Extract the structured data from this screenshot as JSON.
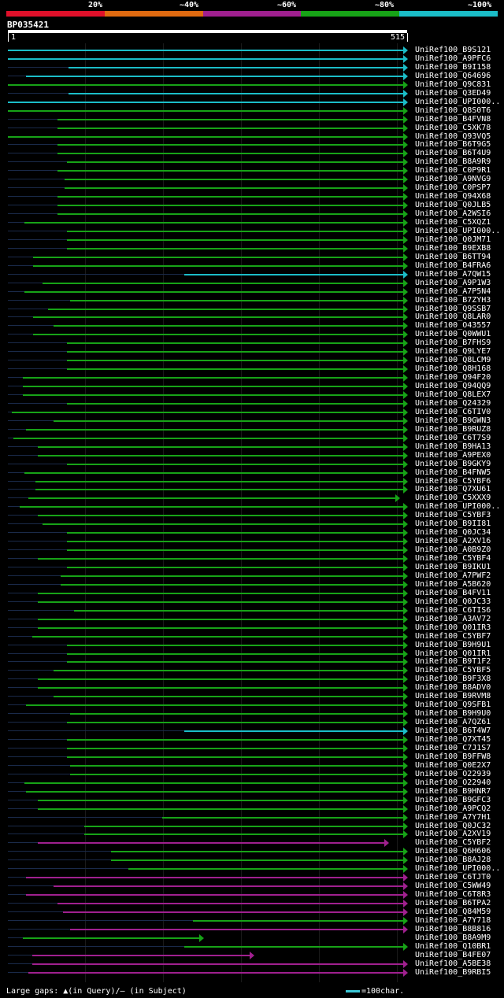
{
  "legend": {
    "labels": [
      "20%",
      "~40%",
      "~60%",
      "~80%",
      "~100%"
    ],
    "colors": [
      "#e0102a",
      "#e06a10",
      "#a0208f",
      "#17a317",
      "#1bbdc8"
    ]
  },
  "query_id": "BP035421",
  "ruler": {
    "start_label": "1",
    "end_label": "515"
  },
  "footer": {
    "text": "Large gaps: ▲(in Query)/— (in Subject)",
    "scale_label": "=100char."
  },
  "query_length": 515,
  "hits": [
    {
      "id": "UniRef100_B9S121",
      "color": "#1bbdc8",
      "s": 1,
      "e": 515
    },
    {
      "id": "UniRef100_A9PFC6",
      "color": "#1bbdc8",
      "s": 1,
      "e": 515
    },
    {
      "id": "UniRef100_B9I158",
      "color": "#1bbdc8",
      "s": 80,
      "e": 515
    },
    {
      "id": "UniRef100_Q64696",
      "color": "#1bbdc8",
      "s": 25,
      "e": 515
    },
    {
      "id": "UniRef100_Q9C831",
      "color": "#17a317",
      "s": 1,
      "e": 515
    },
    {
      "id": "UniRef100_Q3ED49",
      "color": "#1bbdc8",
      "s": 80,
      "e": 515
    },
    {
      "id": "UniRef100_UPI000..",
      "color": "#1bbdc8",
      "s": 1,
      "e": 515
    },
    {
      "id": "UniRef100_Q8S0T6",
      "color": "#17a317",
      "s": 1,
      "e": 515
    },
    {
      "id": "UniRef100_B4FVN8",
      "color": "#17a317",
      "s": 65,
      "e": 515
    },
    {
      "id": "UniRef100_C5XK78",
      "color": "#17a317",
      "s": 65,
      "e": 515
    },
    {
      "id": "UniRef100_Q93VQ5",
      "color": "#17a317",
      "s": 1,
      "e": 515
    },
    {
      "id": "UniRef100_B6T9G5",
      "color": "#17a317",
      "s": 65,
      "e": 515
    },
    {
      "id": "UniRef100_B6T4U9",
      "color": "#17a317",
      "s": 65,
      "e": 515
    },
    {
      "id": "UniRef100_B8A9R9",
      "color": "#17a317",
      "s": 78,
      "e": 515
    },
    {
      "id": "UniRef100_C0P9R1",
      "color": "#17a317",
      "s": 65,
      "e": 515
    },
    {
      "id": "UniRef100_A9NVG9",
      "color": "#17a317",
      "s": 75,
      "e": 515
    },
    {
      "id": "UniRef100_C0PSP7",
      "color": "#17a317",
      "s": 75,
      "e": 515
    },
    {
      "id": "UniRef100_Q94X68",
      "color": "#17a317",
      "s": 65,
      "e": 515
    },
    {
      "id": "UniRef100_Q0JLB5",
      "color": "#17a317",
      "s": 65,
      "e": 515
    },
    {
      "id": "UniRef100_A2WSI6",
      "color": "#17a317",
      "s": 65,
      "e": 515
    },
    {
      "id": "UniRef100_C5XQZ1",
      "color": "#17a317",
      "s": 22,
      "e": 515
    },
    {
      "id": "UniRef100_UPI000..",
      "color": "#17a317",
      "s": 78,
      "e": 515
    },
    {
      "id": "UniRef100_Q0JM71",
      "color": "#17a317",
      "s": 78,
      "e": 515
    },
    {
      "id": "UniRef100_B9EXB8",
      "color": "#17a317",
      "s": 78,
      "e": 515
    },
    {
      "id": "UniRef100_B6TT94",
      "color": "#17a317",
      "s": 34,
      "e": 515
    },
    {
      "id": "UniRef100_B4FRA6",
      "color": "#17a317",
      "s": 34,
      "e": 515
    },
    {
      "id": "UniRef100_A7QW15",
      "color": "#1bbdc8",
      "s": 230,
      "e": 515
    },
    {
      "id": "UniRef100_A9P1W3",
      "color": "#17a317",
      "s": 46,
      "e": 515
    },
    {
      "id": "UniRef100_A7P5N4",
      "color": "#17a317",
      "s": 22,
      "e": 515
    },
    {
      "id": "UniRef100_B7ZYH3",
      "color": "#17a317",
      "s": 82,
      "e": 515
    },
    {
      "id": "UniRef100_Q9SSB7",
      "color": "#17a317",
      "s": 53,
      "e": 515
    },
    {
      "id": "UniRef100_Q8LAR0",
      "color": "#17a317",
      "s": 34,
      "e": 515
    },
    {
      "id": "UniRef100_O43557",
      "color": "#17a317",
      "s": 60,
      "e": 515
    },
    {
      "id": "UniRef100_Q0WWU1",
      "color": "#17a317",
      "s": 34,
      "e": 515
    },
    {
      "id": "UniRef100_B7FHS9",
      "color": "#17a317",
      "s": 78,
      "e": 515
    },
    {
      "id": "UniRef100_Q9LYE7",
      "color": "#17a317",
      "s": 78,
      "e": 515
    },
    {
      "id": "UniRef100_Q8LCM9",
      "color": "#17a317",
      "s": 78,
      "e": 515
    },
    {
      "id": "UniRef100_Q8H168",
      "color": "#17a317",
      "s": 78,
      "e": 515
    },
    {
      "id": "UniRef100_Q94F20",
      "color": "#17a317",
      "s": 20,
      "e": 515
    },
    {
      "id": "UniRef100_Q94QQ9",
      "color": "#17a317",
      "s": 20,
      "e": 515
    },
    {
      "id": "UniRef100_Q8LEX7",
      "color": "#17a317",
      "s": 20,
      "e": 515
    },
    {
      "id": "UniRef100_Q24329",
      "color": "#17a317",
      "s": 78,
      "e": 515
    },
    {
      "id": "UniRef100_C6TIV0",
      "color": "#17a317",
      "s": 6,
      "e": 515
    },
    {
      "id": "UniRef100_B9GWN3",
      "color": "#17a317",
      "s": 60,
      "e": 515
    },
    {
      "id": "UniRef100_B9RUZ8",
      "color": "#17a317",
      "s": 25,
      "e": 515
    },
    {
      "id": "UniRef100_C6T7S9",
      "color": "#17a317",
      "s": 8,
      "e": 515
    },
    {
      "id": "UniRef100_B9HA13",
      "color": "#17a317",
      "s": 40,
      "e": 515
    },
    {
      "id": "UniRef100_A9PEX0",
      "color": "#17a317",
      "s": 40,
      "e": 515
    },
    {
      "id": "UniRef100_B9GKY9",
      "color": "#17a317",
      "s": 78,
      "e": 515
    },
    {
      "id": "UniRef100_B4FNW5",
      "color": "#17a317",
      "s": 22,
      "e": 515
    },
    {
      "id": "UniRef100_C5YBF6",
      "color": "#17a317",
      "s": 37,
      "e": 515
    },
    {
      "id": "UniRef100_Q7XU61",
      "color": "#17a317",
      "s": 37,
      "e": 515
    },
    {
      "id": "UniRef100_C5XXX9",
      "color": "#17a317",
      "s": 28,
      "e": 505
    },
    {
      "id": "UniRef100_UPI000..",
      "color": "#17a317",
      "s": 16,
      "e": 515
    },
    {
      "id": "UniRef100_C5YBF3",
      "color": "#17a317",
      "s": 40,
      "e": 515
    },
    {
      "id": "UniRef100_B9II81",
      "color": "#17a317",
      "s": 46,
      "e": 515
    },
    {
      "id": "UniRef100_Q0JC34",
      "color": "#17a317",
      "s": 78,
      "e": 515
    },
    {
      "id": "UniRef100_A2XV16",
      "color": "#17a317",
      "s": 78,
      "e": 515
    },
    {
      "id": "UniRef100_A0B9Z0",
      "color": "#17a317",
      "s": 78,
      "e": 515
    },
    {
      "id": "UniRef100_C5YBF4",
      "color": "#17a317",
      "s": 40,
      "e": 515
    },
    {
      "id": "UniRef100_B9IKU1",
      "color": "#17a317",
      "s": 78,
      "e": 515
    },
    {
      "id": "UniRef100_A7PWF2",
      "color": "#17a317",
      "s": 70,
      "e": 515
    },
    {
      "id": "UniRef100_A5B620",
      "color": "#17a317",
      "s": 70,
      "e": 515
    },
    {
      "id": "UniRef100_B4FV11",
      "color": "#17a317",
      "s": 40,
      "e": 515
    },
    {
      "id": "UniRef100_Q0JC33",
      "color": "#17a317",
      "s": 40,
      "e": 515
    },
    {
      "id": "UniRef100_C6TIS6",
      "color": "#17a317",
      "s": 87,
      "e": 515
    },
    {
      "id": "UniRef100_A3AV72",
      "color": "#17a317",
      "s": 40,
      "e": 515
    },
    {
      "id": "UniRef100_Q01IR3",
      "color": "#17a317",
      "s": 40,
      "e": 515
    },
    {
      "id": "UniRef100_C5YBF7",
      "color": "#17a317",
      "s": 33,
      "e": 515
    },
    {
      "id": "UniRef100_B9H9U1",
      "color": "#17a317",
      "s": 78,
      "e": 515
    },
    {
      "id": "UniRef100_Q01IR1",
      "color": "#17a317",
      "s": 78,
      "e": 515
    },
    {
      "id": "UniRef100_B9T1F2",
      "color": "#17a317",
      "s": 78,
      "e": 515
    },
    {
      "id": "UniRef100_C5YBF5",
      "color": "#17a317",
      "s": 60,
      "e": 515
    },
    {
      "id": "UniRef100_B9F3X8",
      "color": "#17a317",
      "s": 40,
      "e": 515
    },
    {
      "id": "UniRef100_B8ADV0",
      "color": "#17a317",
      "s": 40,
      "e": 515
    },
    {
      "id": "UniRef100_B9RVM8",
      "color": "#17a317",
      "s": 60,
      "e": 515
    },
    {
      "id": "UniRef100_Q9SFB1",
      "color": "#17a317",
      "s": 25,
      "e": 515
    },
    {
      "id": "UniRef100_B9H9U0",
      "color": "#17a317",
      "s": 82,
      "e": 515
    },
    {
      "id": "UniRef100_A7QZ61",
      "color": "#17a317",
      "s": 78,
      "e": 515
    },
    {
      "id": "UniRef100_B6T4W7",
      "color": "#1bbdc8",
      "s": 230,
      "e": 515
    },
    {
      "id": "UniRef100_Q7XT45",
      "color": "#17a317",
      "s": 78,
      "e": 515
    },
    {
      "id": "UniRef100_C7J1S7",
      "color": "#17a317",
      "s": 78,
      "e": 515
    },
    {
      "id": "UniRef100_B9FFW8",
      "color": "#17a317",
      "s": 78,
      "e": 515
    },
    {
      "id": "UniRef100_Q0E2X7",
      "color": "#17a317",
      "s": 82,
      "e": 515
    },
    {
      "id": "UniRef100_O22939",
      "color": "#17a317",
      "s": 82,
      "e": 515
    },
    {
      "id": "UniRef100_O22940",
      "color": "#17a317",
      "s": 22,
      "e": 515
    },
    {
      "id": "UniRef100_B9HNR7",
      "color": "#17a317",
      "s": 25,
      "e": 515
    },
    {
      "id": "UniRef100_B9GFC3",
      "color": "#17a317",
      "s": 40,
      "e": 515
    },
    {
      "id": "UniRef100_A9PCQ2",
      "color": "#17a317",
      "s": 40,
      "e": 515
    },
    {
      "id": "UniRef100_A7Y7H1",
      "color": "#17a317",
      "s": 202,
      "e": 515
    },
    {
      "id": "UniRef100_Q0JC32",
      "color": "#17a317",
      "s": 100,
      "e": 515
    },
    {
      "id": "UniRef100_A2XV19",
      "color": "#17a317",
      "s": 100,
      "e": 515
    },
    {
      "id": "UniRef100_C5YBF2",
      "color": "#a0208f",
      "s": 40,
      "e": 490
    },
    {
      "id": "UniRef100_Q6H606",
      "color": "#17a317",
      "s": 135,
      "e": 515
    },
    {
      "id": "UniRef100_B8AJ28",
      "color": "#17a317",
      "s": 135,
      "e": 515
    },
    {
      "id": "UniRef100_UPI000..",
      "color": "#17a317",
      "s": 158,
      "e": 515
    },
    {
      "id": "UniRef100_C6TJT0",
      "color": "#a0208f",
      "s": 25,
      "e": 515
    },
    {
      "id": "UniRef100_C5WW49",
      "color": "#a0208f",
      "s": 60,
      "e": 515
    },
    {
      "id": "UniRef100_C6T8R3",
      "color": "#a0208f",
      "s": 25,
      "e": 515
    },
    {
      "id": "UniRef100_B6TPA2",
      "color": "#a0208f",
      "s": 65,
      "e": 515
    },
    {
      "id": "UniRef100_Q84M59",
      "color": "#a0208f",
      "s": 73,
      "e": 515
    },
    {
      "id": "UniRef100_A7Y718",
      "color": "#17a317",
      "s": 242,
      "e": 515
    },
    {
      "id": "UniRef100_B8B816",
      "color": "#a0208f",
      "s": 82,
      "e": 515
    },
    {
      "id": "UniRef100_B8A9M9",
      "color": "#17a317",
      "s": 20,
      "e": 250
    },
    {
      "id": "UniRef100_Q10BR1",
      "color": "#17a317",
      "s": 230,
      "e": 515
    },
    {
      "id": "UniRef100_B4FE07",
      "color": "#a0208f",
      "s": 33,
      "e": 315
    },
    {
      "id": "UniRef100_A5BE38",
      "color": "#a0208f",
      "s": 33,
      "e": 515
    },
    {
      "id": "UniRef100_B9RBI5",
      "color": "#a0208f",
      "s": 28,
      "e": 515
    }
  ]
}
